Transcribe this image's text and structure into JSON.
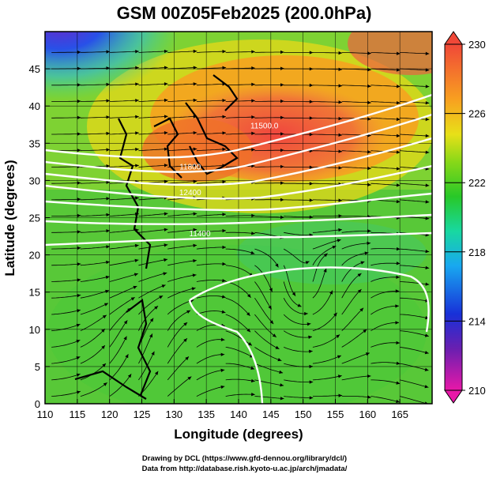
{
  "chart_data": {
    "type": "heatmap",
    "title": "GSM 00Z05Feb2025 (200.0hPa)",
    "xlabel": "Longitude (degrees)",
    "ylabel": "Latitude  (degrees)",
    "xlim": [
      110,
      170
    ],
    "ylim": [
      0,
      50
    ],
    "x_ticks": [
      110,
      115,
      120,
      125,
      130,
      135,
      140,
      145,
      150,
      155,
      160,
      165
    ],
    "y_ticks": [
      0,
      5,
      10,
      15,
      20,
      25,
      30,
      35,
      40,
      45
    ],
    "colorbar": {
      "min": 210,
      "max": 230,
      "ticks": [
        210,
        214,
        218,
        222,
        226,
        230
      ]
    },
    "contour_labels": [
      {
        "text": "11500.0",
        "lon": 144.0,
        "lat": 37.0
      },
      {
        "text": "11800",
        "lon": 132.5,
        "lat": 31.5
      },
      {
        "text": "11400",
        "lon": 134.0,
        "lat": 22.5
      },
      {
        "text": "12400",
        "lon": 132.5,
        "lat": 28.0
      }
    ]
  },
  "credits": {
    "line1": "Drawing by DCL (https://www.gfd-dennou.org/library/dcl/)",
    "line2": "Data from http://database.rish.kyoto-u.ac.jp/arch/jmadata/"
  }
}
